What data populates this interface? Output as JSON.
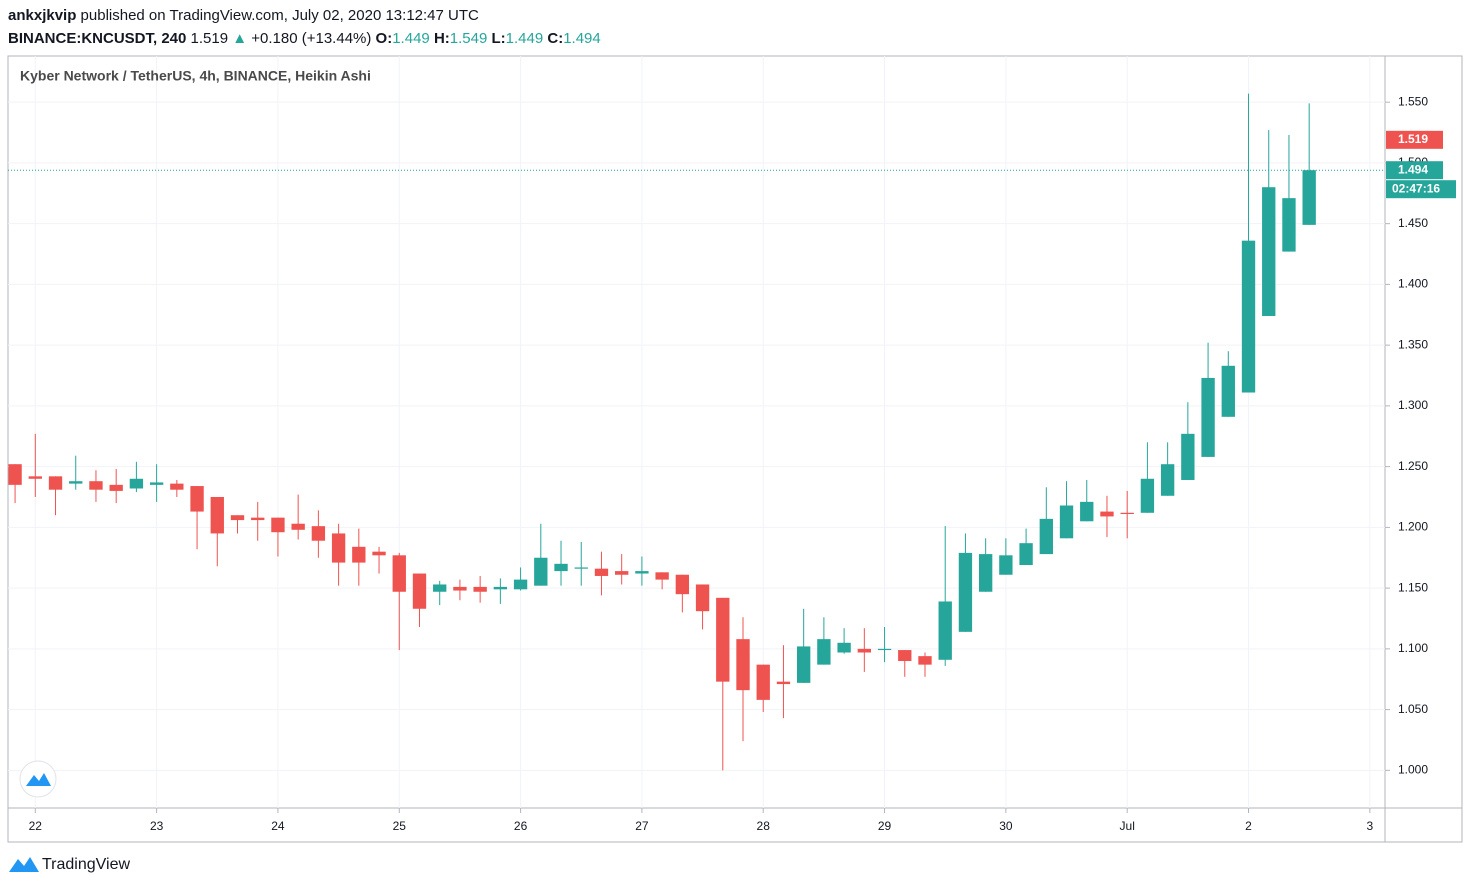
{
  "header": {
    "user": "ankxjkvip",
    "published": "published on TradingView.com, July 02, 2020 13:12:47 UTC",
    "symbol": "BINANCE:KNCUSDT, 240",
    "last": "1.519",
    "arrow": "▲",
    "change": "+0.180 (+13.44%)",
    "ohlc": [
      {
        "label": "O:",
        "value": "1.449"
      },
      {
        "label": "H:",
        "value": "1.549"
      },
      {
        "label": "L:",
        "value": "1.449"
      },
      {
        "label": "C:",
        "value": "1.494"
      }
    ]
  },
  "chart_data": {
    "type": "candlestick",
    "title": "Kyber Network / TetherUS, 4h, BINANCE, Heikin Ashi",
    "up_color": "#26a69a",
    "down_color": "#ef5350",
    "grid": true,
    "open": [
      1.252,
      1.242,
      1.242,
      1.236,
      1.238,
      1.235,
      1.232,
      1.235,
      1.236,
      1.234,
      1.225,
      1.21,
      1.208,
      1.208,
      1.203,
      1.201,
      1.195,
      1.184,
      1.18,
      1.177,
      1.162,
      1.147,
      1.151,
      1.151,
      1.149,
      1.149,
      1.152,
      1.164,
      1.166,
      1.166,
      1.164,
      1.162,
      1.163,
      1.161,
      1.153,
      1.142,
      1.108,
      1.087,
      1.073,
      1.072,
      1.087,
      1.097,
      1.1,
      1.099,
      1.099,
      1.094,
      1.091,
      1.114,
      1.147,
      1.161,
      1.169,
      1.178,
      1.191,
      1.205,
      1.213,
      1.212,
      1.212,
      1.226,
      1.239,
      1.258,
      1.291,
      1.311,
      1.374,
      1.427,
      1.449
    ],
    "high": [
      1.252,
      1.277,
      1.242,
      1.259,
      1.247,
      1.248,
      1.254,
      1.252,
      1.239,
      1.234,
      1.225,
      1.21,
      1.221,
      1.208,
      1.227,
      1.214,
      1.203,
      1.199,
      1.184,
      1.179,
      1.162,
      1.156,
      1.157,
      1.16,
      1.158,
      1.167,
      1.203,
      1.189,
      1.188,
      1.18,
      1.178,
      1.176,
      1.163,
      1.161,
      1.153,
      1.142,
      1.126,
      1.087,
      1.103,
      1.133,
      1.126,
      1.117,
      1.117,
      1.118,
      1.099,
      1.097,
      1.201,
      1.195,
      1.191,
      1.191,
      1.199,
      1.233,
      1.238,
      1.239,
      1.226,
      1.23,
      1.27,
      1.27,
      1.303,
      1.352,
      1.345,
      1.557,
      1.527,
      1.523,
      1.549
    ],
    "low": [
      1.22,
      1.225,
      1.21,
      1.231,
      1.221,
      1.22,
      1.229,
      1.221,
      1.225,
      1.182,
      1.168,
      1.195,
      1.189,
      1.176,
      1.19,
      1.175,
      1.152,
      1.152,
      1.162,
      1.099,
      1.118,
      1.136,
      1.14,
      1.138,
      1.137,
      1.148,
      1.152,
      1.152,
      1.152,
      1.144,
      1.153,
      1.152,
      1.149,
      1.13,
      1.116,
      1.0,
      1.024,
      1.048,
      1.043,
      1.072,
      1.087,
      1.096,
      1.081,
      1.089,
      1.077,
      1.077,
      1.086,
      1.114,
      1.147,
      1.161,
      1.169,
      1.178,
      1.191,
      1.205,
      1.192,
      1.191,
      1.212,
      1.226,
      1.239,
      1.258,
      1.291,
      1.311,
      1.374,
      1.427,
      1.449
    ],
    "close": [
      1.235,
      1.24,
      1.231,
      1.238,
      1.231,
      1.23,
      1.24,
      1.237,
      1.231,
      1.213,
      1.195,
      1.206,
      1.206,
      1.196,
      1.198,
      1.189,
      1.171,
      1.171,
      1.177,
      1.147,
      1.133,
      1.153,
      1.148,
      1.147,
      1.151,
      1.157,
      1.175,
      1.17,
      1.167,
      1.16,
      1.161,
      1.164,
      1.157,
      1.145,
      1.131,
      1.073,
      1.066,
      1.058,
      1.071,
      1.102,
      1.108,
      1.105,
      1.097,
      1.1,
      1.09,
      1.087,
      1.139,
      1.179,
      1.178,
      1.177,
      1.187,
      1.207,
      1.218,
      1.221,
      1.209,
      1.211,
      1.24,
      1.252,
      1.277,
      1.323,
      1.333,
      1.436,
      1.48,
      1.471,
      1.494
    ],
    "xlim": [
      -0.35,
      67.75
    ],
    "xticks": [
      {
        "value": 1,
        "label": "22"
      },
      {
        "value": 7,
        "label": "23"
      },
      {
        "value": 13,
        "label": "24"
      },
      {
        "value": 19,
        "label": "25"
      },
      {
        "value": 25,
        "label": "26"
      },
      {
        "value": 31,
        "label": "27"
      },
      {
        "value": 37,
        "label": "28"
      },
      {
        "value": 43,
        "label": "29"
      },
      {
        "value": 49,
        "label": "30"
      },
      {
        "value": 55,
        "label": "Jul"
      },
      {
        "value": 61,
        "label": "2"
      },
      {
        "value": 67,
        "label": "3"
      }
    ],
    "ylim": [
      0.969,
      1.588
    ],
    "yticks": [
      {
        "value": 1,
        "label": "1.000"
      },
      {
        "value": 1.05,
        "label": "1.050"
      },
      {
        "value": 1.1,
        "label": "1.100"
      },
      {
        "value": 1.15,
        "label": "1.150"
      },
      {
        "value": 1.2,
        "label": "1.200"
      },
      {
        "value": 1.25,
        "label": "1.250"
      },
      {
        "value": 1.3,
        "label": "1.300"
      },
      {
        "value": 1.35,
        "label": "1.350"
      },
      {
        "value": 1.4,
        "label": "1.400"
      },
      {
        "value": 1.45,
        "label": "1.450"
      },
      {
        "value": 1.5,
        "label": "1.500"
      },
      {
        "value": 1.55,
        "label": "1.550"
      }
    ],
    "price_labels": [
      {
        "value": 1.519,
        "color": "#ef5350"
      },
      {
        "value": 1.494,
        "color": "#26a69a"
      }
    ],
    "price_line": 1.494,
    "countdown": "02:47:16"
  },
  "footer": {
    "brand": "TradingView"
  }
}
